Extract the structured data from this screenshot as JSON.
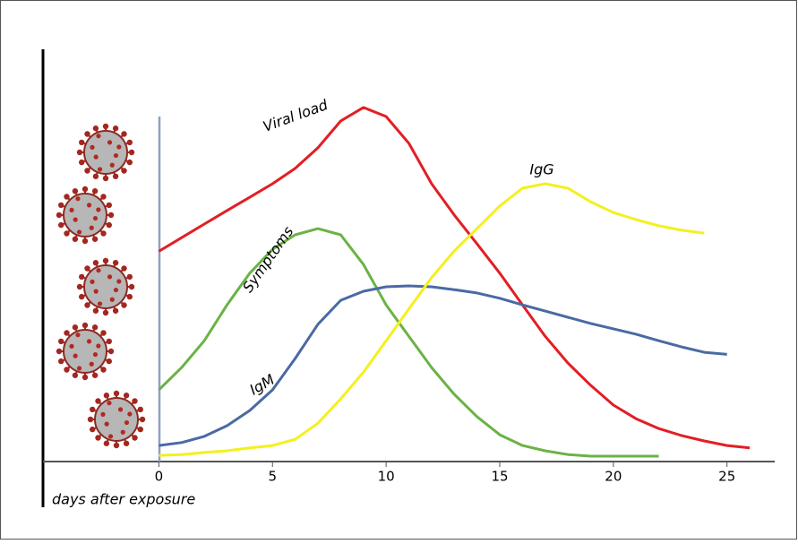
{
  "chart_data": {
    "type": "line",
    "x": [
      0,
      1,
      2,
      3,
      4,
      5,
      6,
      7,
      8,
      9,
      10,
      11,
      12,
      13,
      14,
      15,
      16,
      17,
      18,
      19,
      20,
      21,
      22,
      23,
      24,
      25,
      26
    ],
    "xlim": [
      -5.1,
      27.1
    ],
    "xticks": [
      0,
      5,
      10,
      15,
      20,
      25
    ],
    "ylim": [
      0,
      100
    ],
    "xlabel": "days after exposure",
    "series": [
      {
        "name": "Viral load",
        "color": "#e31e24",
        "values": [
          51,
          54.3,
          57.6,
          60.9,
          64.1,
          67.4,
          71.1,
          76.1,
          82.6,
          85.9,
          83.7,
          77.2,
          67.4,
          59.8,
          52.8,
          45.7,
          38,
          30.4,
          23.9,
          18.5,
          13.7,
          10.4,
          8,
          6.3,
          5,
          3.9,
          3.3
        ]
      },
      {
        "name": "Symptoms",
        "color": "#6ab344",
        "values": [
          17.4,
          22.8,
          29.3,
          38,
          45.7,
          51.5,
          55,
          56.5,
          55,
          47.8,
          38,
          30.4,
          22.8,
          16.3,
          10.9,
          6.5,
          3.9,
          2.6,
          1.7,
          1.3,
          1.3,
          1.3,
          1.3,
          null,
          null,
          null,
          null
        ]
      },
      {
        "name": "IgM",
        "color": "#4a6aa5",
        "values": [
          3.9,
          4.6,
          6.1,
          8.7,
          12.4,
          17.4,
          25,
          33.3,
          39.1,
          41.3,
          42.4,
          42.6,
          42.4,
          41.7,
          40.9,
          39.6,
          38,
          36.5,
          35,
          33.5,
          32.2,
          30.9,
          29.3,
          27.8,
          26.5,
          26,
          null
        ]
      },
      {
        "name": "IgG",
        "color": "#f4f01e",
        "values": [
          1.5,
          1.7,
          2.2,
          2.6,
          3.3,
          3.9,
          5.4,
          9.3,
          15.2,
          21.7,
          29.3,
          37,
          44.6,
          51.1,
          56.5,
          62,
          66.3,
          67.4,
          66.3,
          63,
          60.4,
          58.7,
          57.2,
          56.1,
          55.4,
          null,
          null
        ]
      }
    ]
  }
}
